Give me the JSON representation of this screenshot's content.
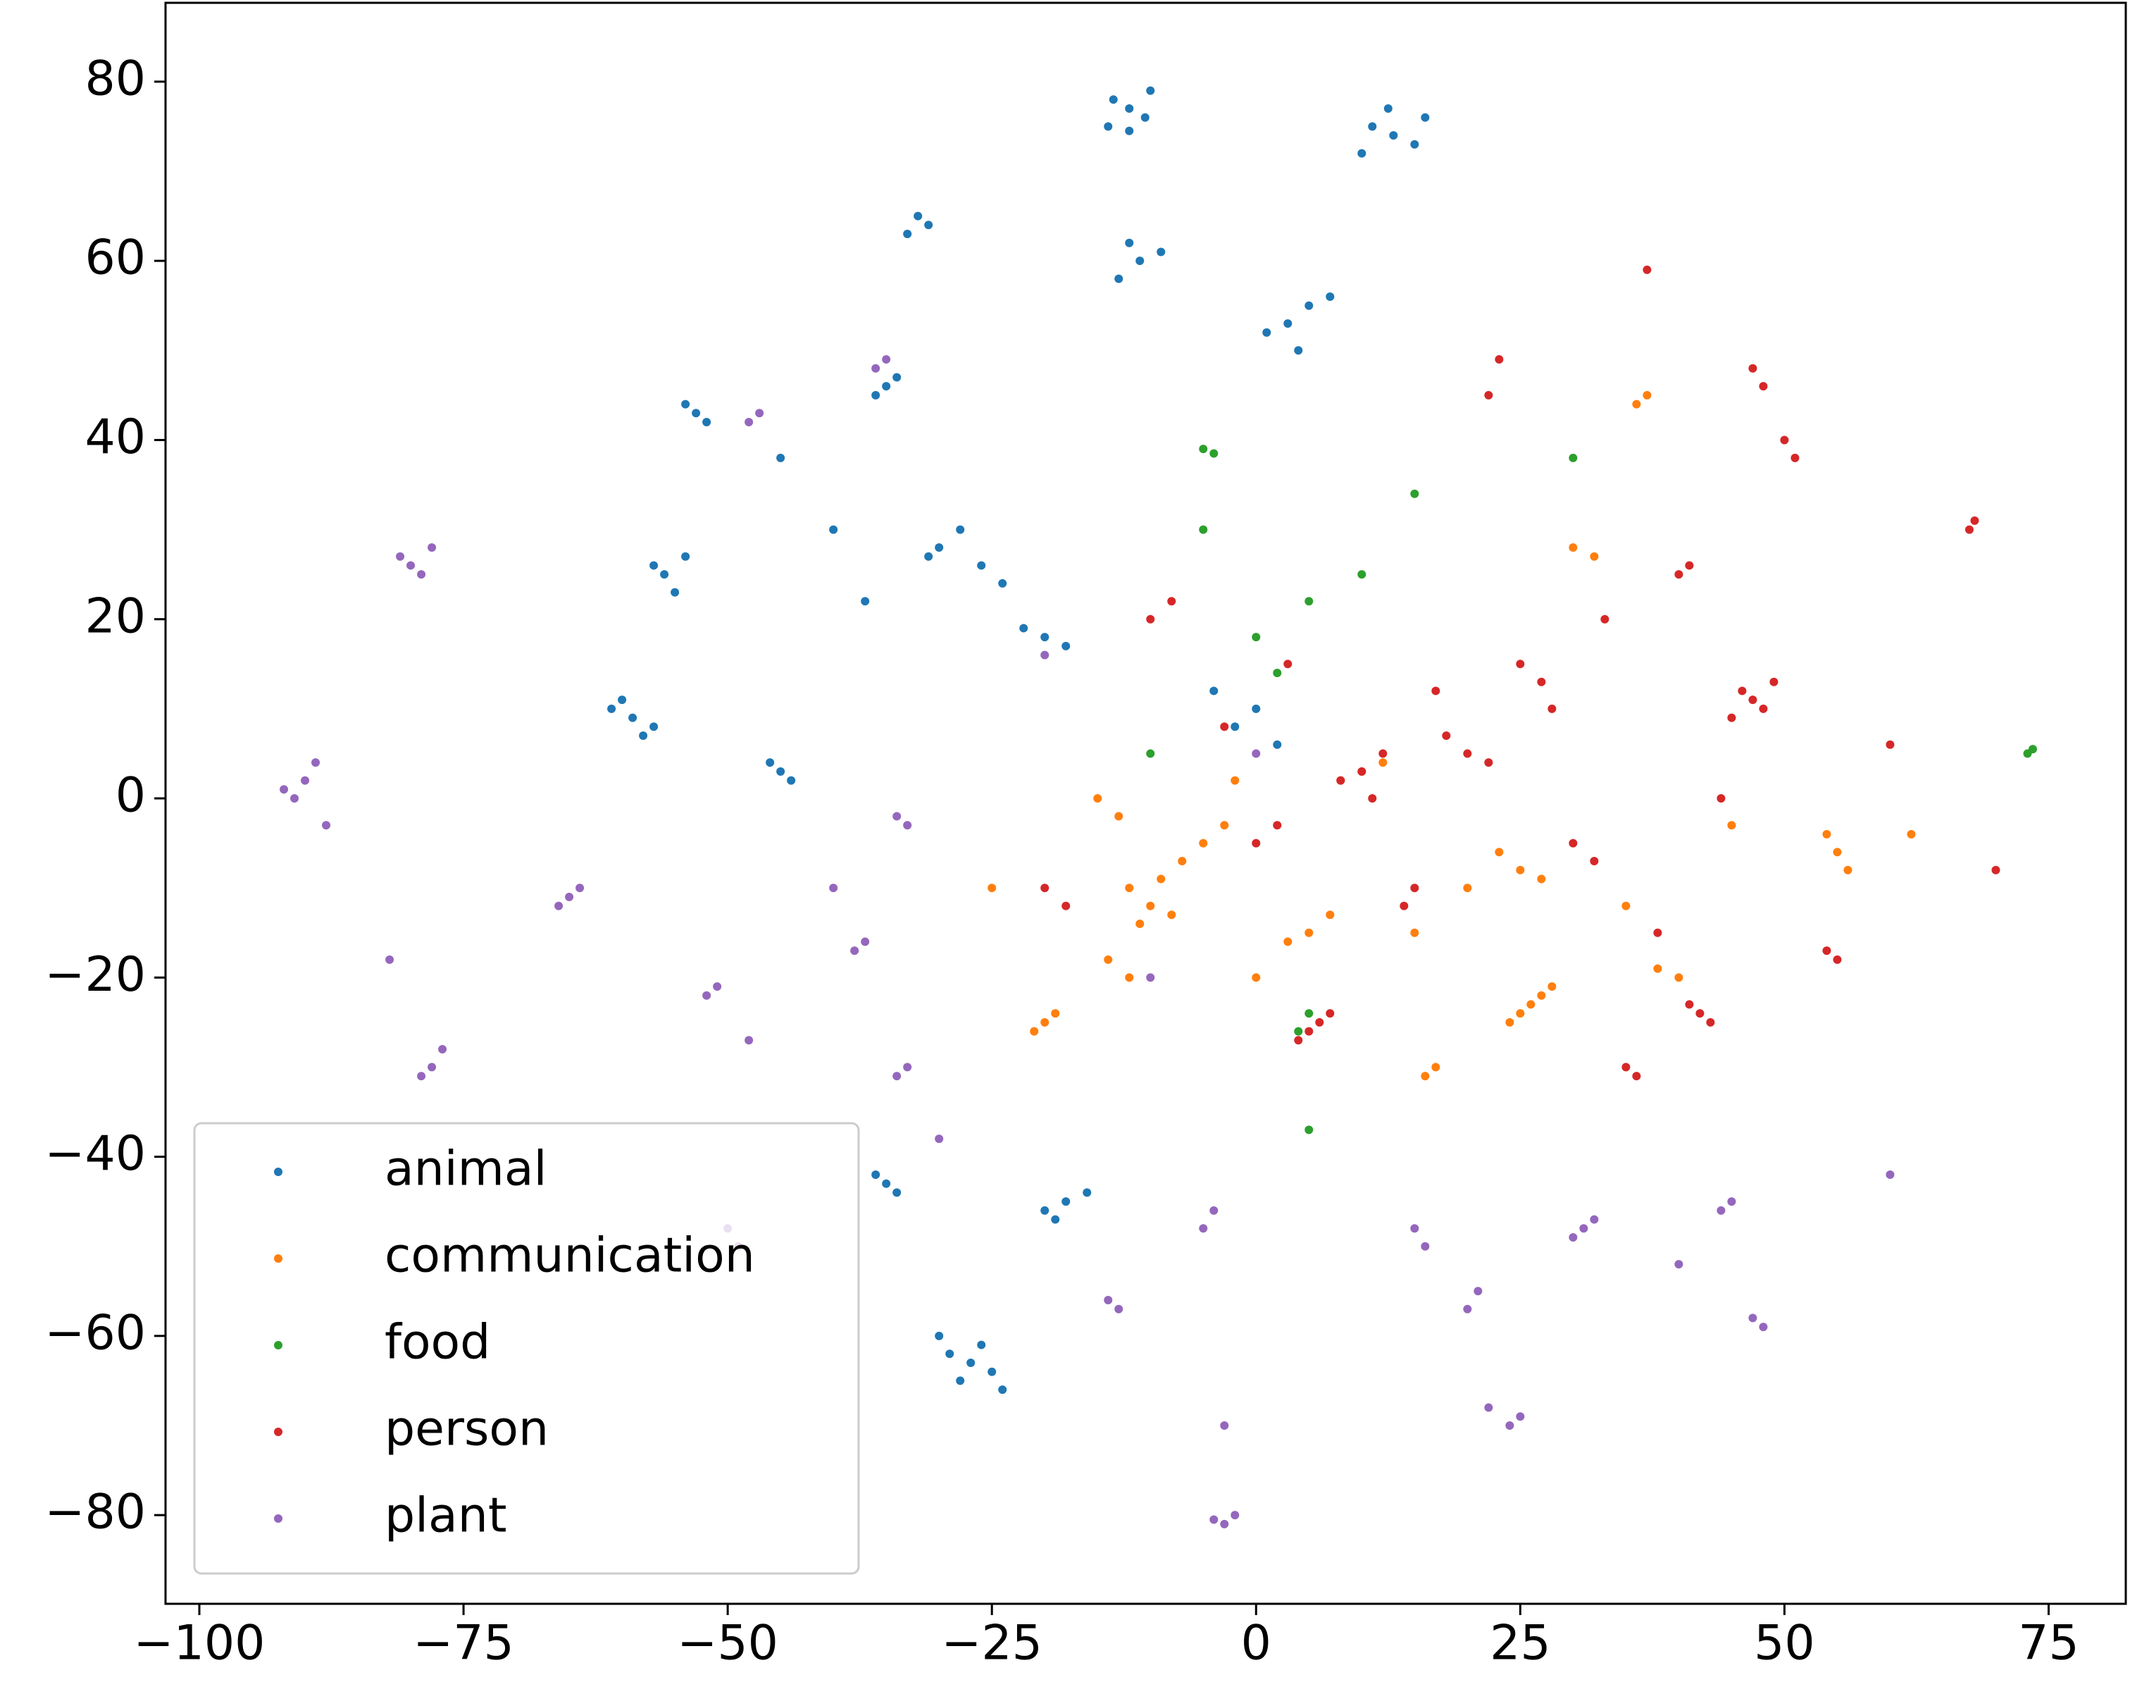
{
  "chart_data": {
    "type": "scatter",
    "xlim": [
      -103.2,
      82.3
    ],
    "ylim": [
      -89.9,
      88.8
    ],
    "xticks": [
      {
        "value": -100,
        "label": "−100"
      },
      {
        "value": -75,
        "label": "−75"
      },
      {
        "value": -50,
        "label": "−50"
      },
      {
        "value": -25,
        "label": "−25"
      },
      0,
      25,
      50,
      75
    ],
    "yticks": [
      {
        "value": -80,
        "label": "−80"
      },
      {
        "value": -60,
        "label": "−60"
      },
      {
        "value": -40,
        "label": "−40"
      },
      {
        "value": -20,
        "label": "−20"
      },
      0,
      20,
      40,
      60,
      80
    ],
    "grid": false,
    "legend": "lower left",
    "series": [
      {
        "name": "animal",
        "color": "#1f77b4",
        "x": [
          -12,
          -13.5,
          -10.5,
          -12,
          -14,
          -10,
          13,
          11,
          15,
          12.5,
          10,
          16,
          -32,
          -33,
          -31,
          -11,
          -13,
          -9,
          -12,
          3,
          5,
          1,
          7,
          4,
          -35,
          -36,
          -34,
          -53,
          -54,
          -52,
          -56,
          -57,
          -55,
          -54,
          -30,
          -28,
          -26,
          -31,
          -24,
          -20,
          -22,
          -18,
          -59,
          -61,
          -57,
          -60,
          -58,
          -45,
          -44,
          -46,
          -35,
          -34,
          -36,
          -27,
          -29,
          -25,
          -28,
          -26,
          -30,
          -24,
          -18,
          -20,
          -16,
          -19,
          -45,
          -40,
          -37,
          -4,
          -2,
          0,
          2
        ],
        "values": [
          77,
          78,
          76,
          74.5,
          75,
          79,
          74,
          75,
          73,
          77,
          72,
          76,
          65,
          63,
          64,
          60,
          58,
          61,
          62,
          53,
          55,
          52,
          56,
          50,
          46,
          45,
          47,
          43,
          44,
          42,
          25,
          26,
          23,
          27,
          28,
          30,
          26,
          27,
          24,
          18,
          19,
          17,
          9,
          10,
          8,
          11,
          7,
          3,
          2,
          4,
          -43,
          -44,
          -42,
          -63,
          -62,
          -64,
          -65,
          -61,
          -60,
          -66,
          -45,
          -46,
          -44,
          -47,
          38,
          30,
          22,
          12,
          8,
          10,
          6
        ]
      },
      {
        "name": "communication",
        "color": "#ff7f0e",
        "x": [
          -10,
          -12,
          -8,
          -11,
          -9,
          26,
          27,
          25,
          28,
          24,
          25,
          23,
          27,
          10,
          12,
          8,
          -5,
          -3,
          -7,
          -20,
          -21,
          -19,
          -12,
          -14,
          16,
          17,
          55,
          56,
          54,
          36,
          37,
          5,
          7,
          3,
          40,
          38,
          -15,
          -13,
          30,
          32,
          0,
          15,
          20,
          35,
          45,
          -25,
          -2,
          62
        ],
        "values": [
          -12,
          -10,
          -13,
          -14,
          -9,
          -23,
          -22,
          -24,
          -21,
          -25,
          -8,
          -6,
          -9,
          3,
          4,
          2,
          -5,
          -3,
          -7,
          -25,
          -26,
          -24,
          -20,
          -18,
          -31,
          -30,
          -6,
          -8,
          -4,
          44,
          45,
          -15,
          -13,
          -16,
          -20,
          -19,
          0,
          -2,
          28,
          27,
          -20,
          -15,
          -10,
          -12,
          -3,
          -10,
          2,
          -4
        ]
      },
      {
        "name": "food",
        "color": "#2ca02c",
        "x": [
          73,
          73.5,
          -5,
          -4,
          4,
          5,
          5,
          0,
          10,
          15,
          30,
          -5,
          5,
          -10,
          2
        ],
        "values": [
          5,
          5.5,
          39,
          38.5,
          -26,
          -24,
          22,
          18,
          25,
          34,
          38,
          30,
          -37,
          5,
          14
        ]
      },
      {
        "name": "person",
        "color": "#d62728",
        "x": [
          47,
          46,
          48,
          45,
          49,
          6,
          5,
          7,
          4,
          68,
          67.5,
          42,
          43,
          41,
          22,
          23,
          47,
          48,
          37,
          70,
          10,
          12,
          8,
          11,
          20,
          18,
          22,
          25,
          27,
          30,
          32,
          40,
          41,
          55,
          54,
          0,
          2,
          -10,
          -8,
          35,
          36,
          50,
          51,
          15,
          14,
          -20,
          -18,
          28,
          33,
          44,
          60,
          3,
          -3,
          17,
          38
        ],
        "values": [
          11,
          12,
          10,
          9,
          13,
          -25,
          -26,
          -24,
          -27,
          31,
          30,
          -24,
          -25,
          -23,
          45,
          49,
          48,
          46,
          59,
          -8,
          3,
          5,
          2,
          0,
          5,
          7,
          4,
          15,
          13,
          -5,
          -7,
          25,
          26,
          -18,
          -17,
          -5,
          -3,
          20,
          22,
          -30,
          -31,
          40,
          38,
          -10,
          -12,
          -10,
          -12,
          10,
          20,
          0,
          6,
          15,
          8,
          12,
          -15
        ]
      },
      {
        "name": "plant",
        "color": "#9467bd",
        "x": [
          -90,
          -91,
          -89,
          -88,
          -92,
          -80,
          -81,
          -79,
          -78,
          -65,
          -66,
          -64,
          -82,
          -78,
          -79,
          -77,
          -52,
          -51,
          -34,
          -33,
          -48,
          -49,
          -50,
          -3,
          -2,
          -4,
          -14,
          -13,
          -3,
          -38,
          -37,
          -33,
          -34,
          -48,
          -47,
          -36,
          -35,
          -20,
          31,
          32,
          30,
          24,
          25,
          22,
          47,
          48,
          45,
          44,
          40,
          20,
          21,
          60,
          -5,
          -4,
          15,
          16,
          -30,
          -10,
          -40,
          0
        ],
        "values": [
          2,
          0,
          4,
          -3,
          1,
          26,
          27,
          25,
          28,
          -11,
          -12,
          -10,
          -18,
          -30,
          -31,
          -28,
          -22,
          -21,
          -31,
          -30,
          -27,
          -50,
          -48,
          -81,
          -80,
          -80.5,
          -56,
          -57,
          -70,
          -17,
          -16,
          -3,
          -2,
          42,
          43,
          48,
          49,
          16,
          -48,
          -47,
          -49,
          -70,
          -69,
          -68,
          -58,
          -59,
          -45,
          -46,
          -52,
          -57,
          -55,
          -42,
          -48,
          -46,
          -48,
          -50,
          -38,
          -20,
          -10,
          5
        ]
      }
    ]
  }
}
